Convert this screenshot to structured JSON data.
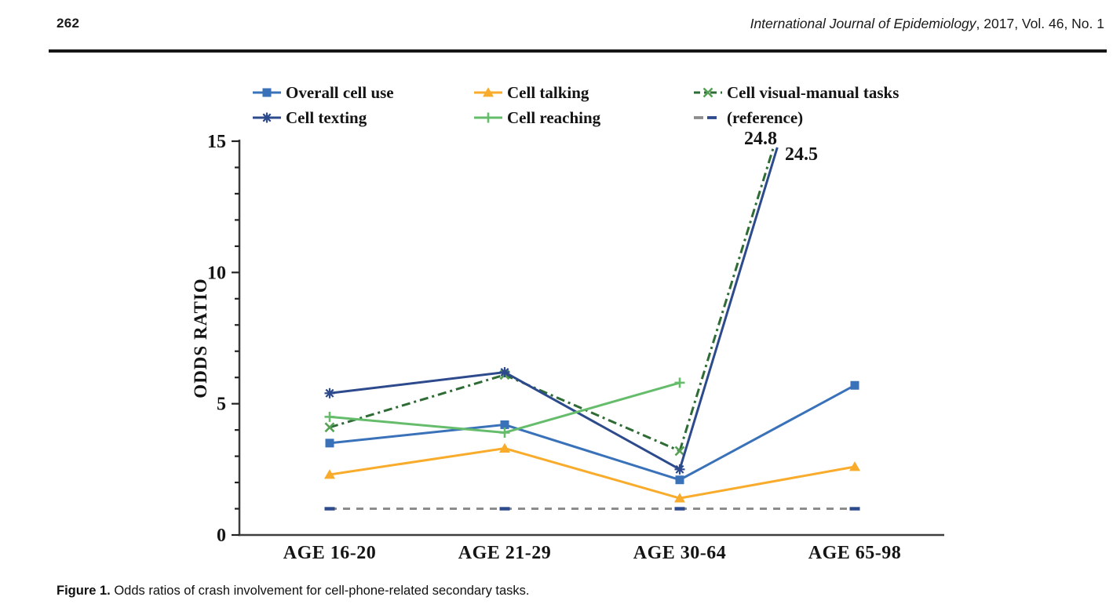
{
  "page": {
    "page_number": "262",
    "journal_title_italic": "International Journal of Epidemiology",
    "journal_issue_info": ", 2017, Vol. 46, No. 1",
    "caption_label": "Figure 1.",
    "caption_text": " Odds ratios of crash involvement for cell-phone-related secondary tasks."
  },
  "chart_data": {
    "type": "line",
    "title": "",
    "xlabel": "",
    "ylabel": "ODDS RATIO",
    "categories": [
      "AGE 16-20",
      "AGE 21-29",
      "AGE 30-64",
      "AGE 65-98"
    ],
    "ylim": [
      0,
      15
    ],
    "y_major_ticks": [
      0,
      5,
      10,
      15
    ],
    "y_minor_tick_step": 1,
    "grid": false,
    "legend_position": "top",
    "legend_columns": 3,
    "series": [
      {
        "name": "Overall cell use",
        "marker": "square",
        "line": "solid",
        "color": "#3A72B9",
        "values": [
          3.5,
          4.2,
          2.1,
          5.7
        ]
      },
      {
        "name": "Cell talking",
        "marker": "triangle",
        "line": "solid",
        "color": "#F9AB2B",
        "values": [
          2.3,
          3.3,
          1.4,
          2.6
        ]
      },
      {
        "name": "Cell visual-manual tasks",
        "marker": "x",
        "line": "dashdot",
        "color": "#2E6B35",
        "marker_color": "#55A054",
        "values": [
          4.1,
          6.1,
          3.2,
          24.8
        ],
        "clipped_at_top": true
      },
      {
        "name": "Cell texting",
        "marker": "asterisk",
        "line": "solid",
        "color": "#2C4A8C",
        "values": [
          5.4,
          6.2,
          2.5,
          24.5
        ],
        "clipped_at_top": true
      },
      {
        "name": "Cell reaching",
        "marker": "plus",
        "line": "solid",
        "color": "#65BD6C",
        "values": [
          4.5,
          3.9,
          5.8,
          null
        ]
      },
      {
        "name": "(reference)",
        "marker": "dash",
        "line": "dashed",
        "color": "#8C8C8C",
        "marker_color": "#2C4A8C",
        "values": [
          1,
          1,
          1,
          1
        ]
      }
    ],
    "annotations": [
      {
        "text": "24.8",
        "x": 969,
        "y": 184
      },
      {
        "text": "24.5",
        "x": 1021,
        "y": 204
      }
    ]
  }
}
